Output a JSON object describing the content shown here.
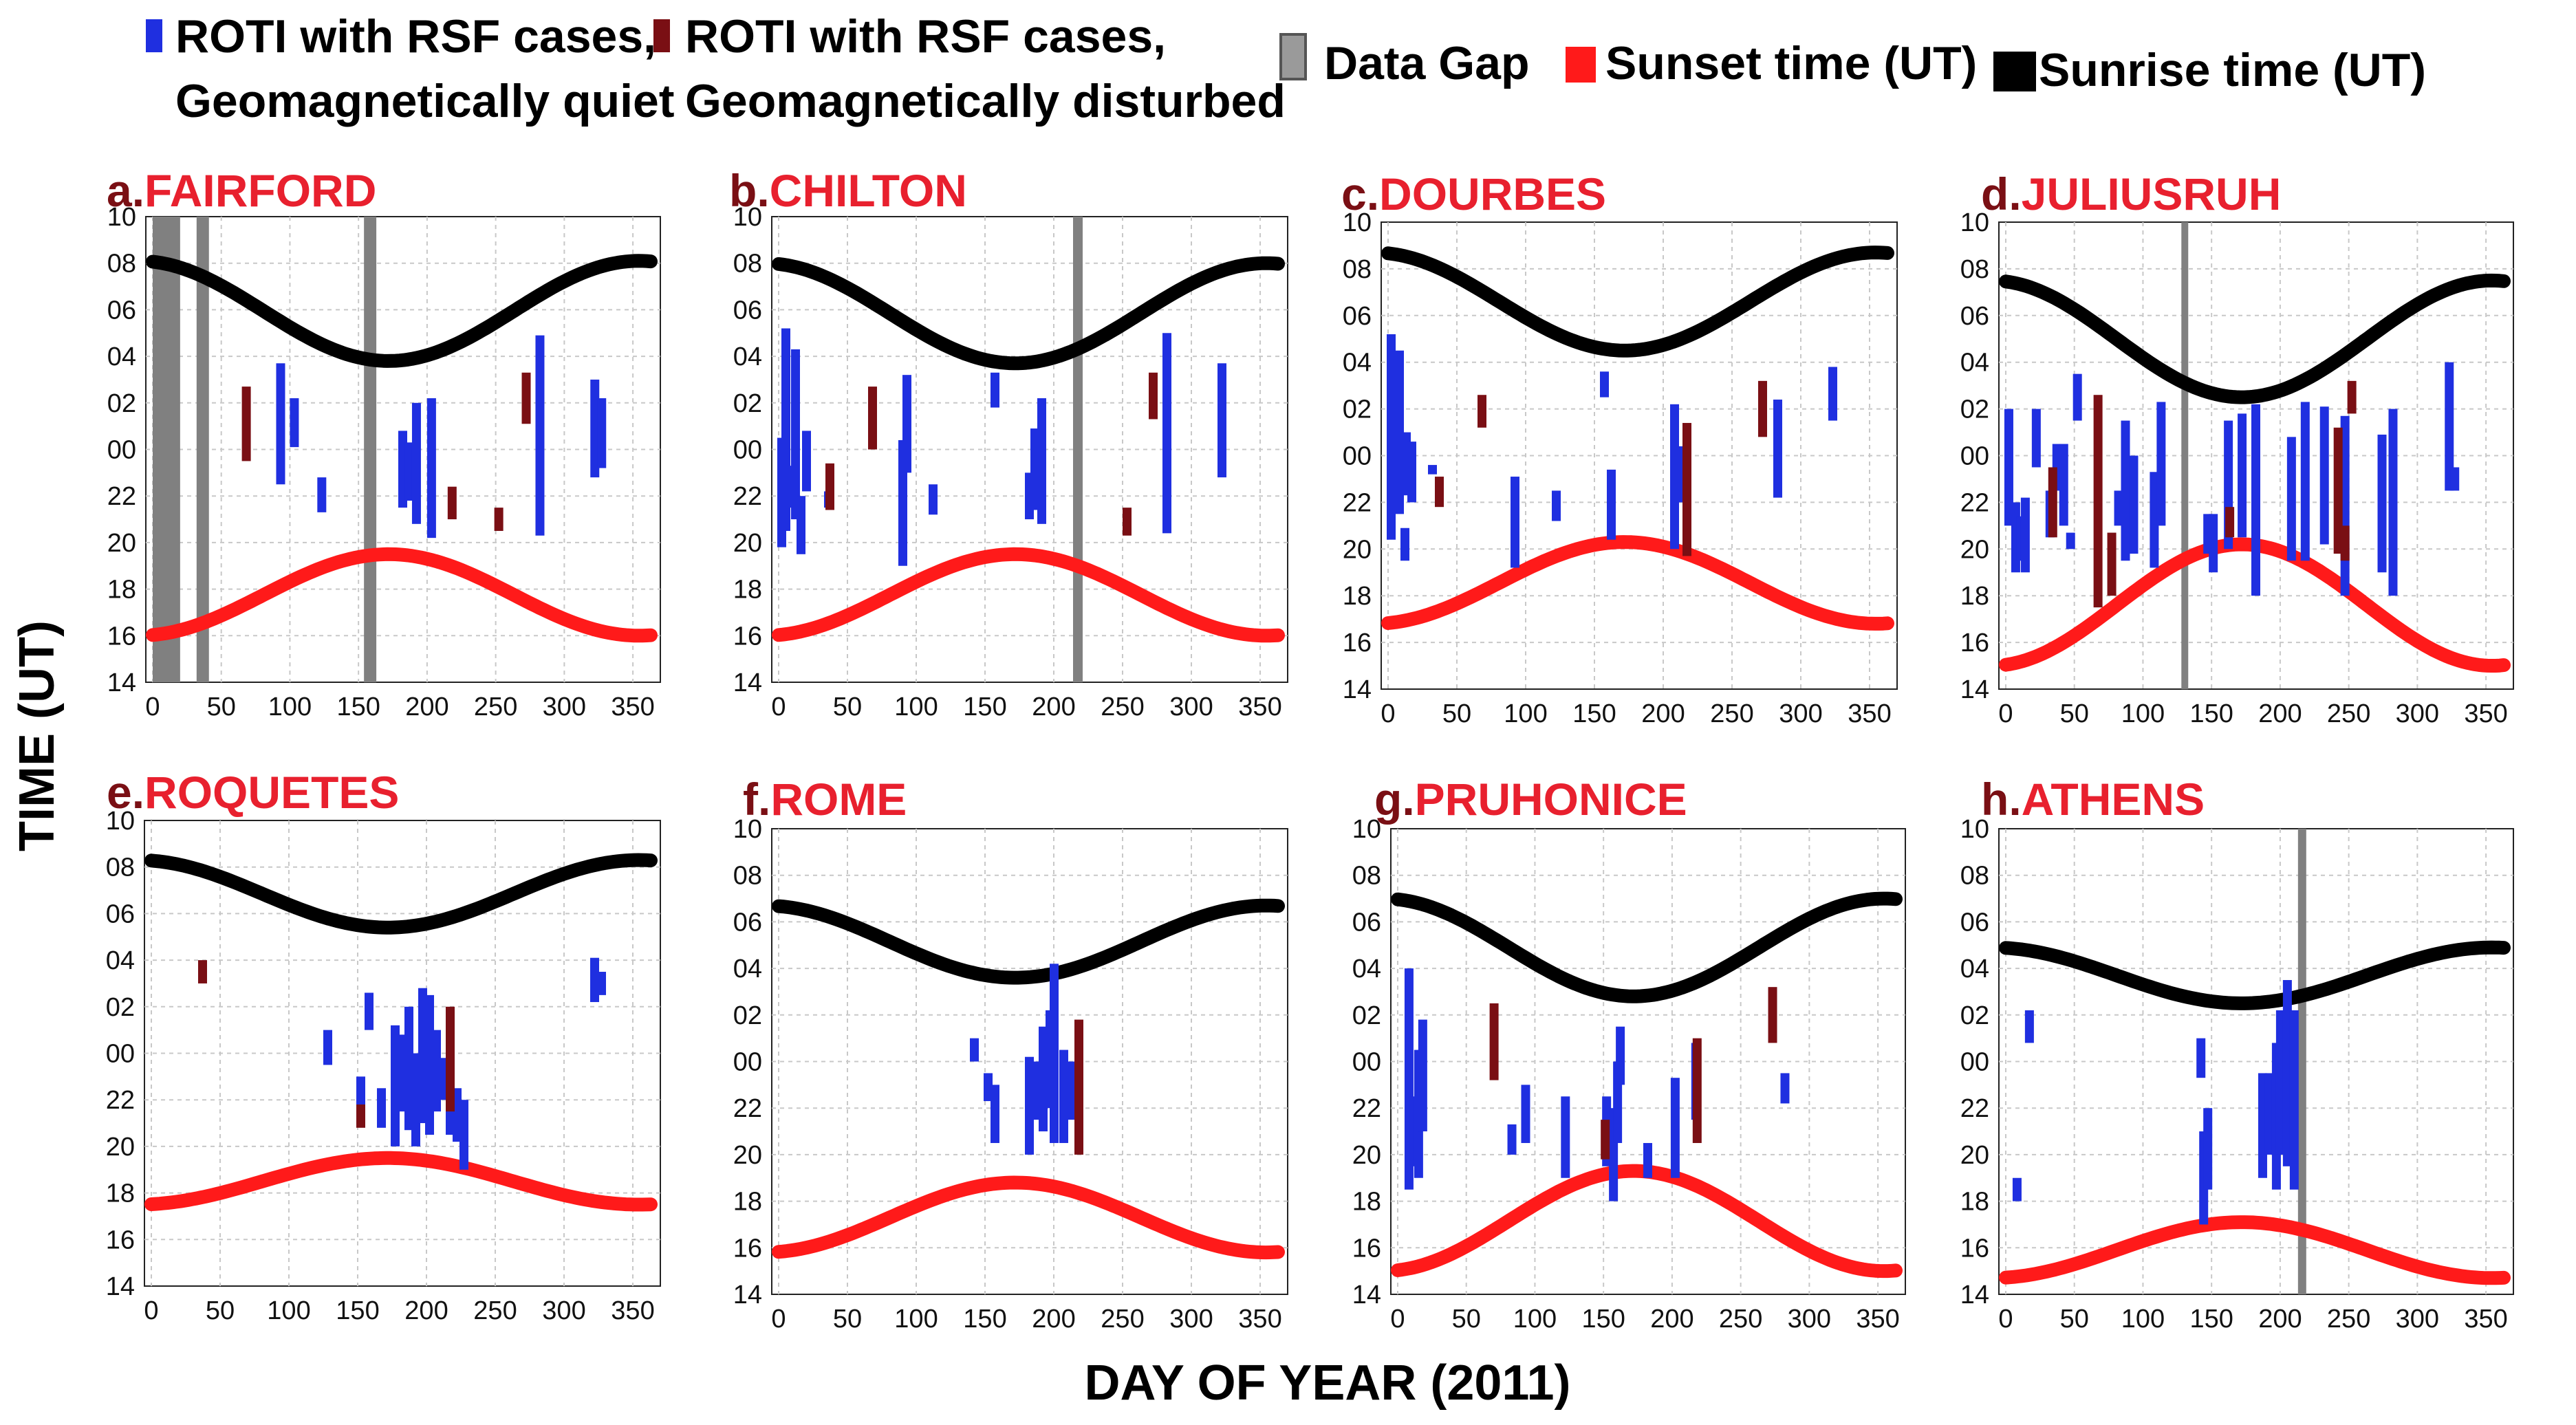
{
  "legend": {
    "quiet_label_line1": "ROTI with RSF cases,",
    "quiet_label_line2": "Geomagnetically quiet",
    "disturbed_label_line1": "ROTI with RSF cases,",
    "disturbed_label_line2": "Geomagnetically disturbed",
    "data_gap_label": "Data Gap",
    "sunset_label": "Sunset time (UT)",
    "sunrise_label": "Sunrise time (UT)"
  },
  "colors": {
    "quiet": "#1f2fe0",
    "disturbed": "#7a0f14",
    "data_gap": "#808080",
    "sunset": "#ff1a1a",
    "sunrise": "#000000",
    "title_letter": "#7a0f14",
    "title_name": "#e8202e",
    "grid": "#c8c8c8"
  },
  "axes": {
    "xlabel": "DAY OF YEAR (2011)",
    "ylabel": "TIME (UT)"
  },
  "chart_data": [
    {
      "type": "bar",
      "letter": "a.",
      "title": "FAIRFORD",
      "xlim": [
        -5,
        370
      ],
      "x_ticks": [
        "0",
        "50",
        "100",
        "150",
        "200",
        "250",
        "300",
        "350"
      ],
      "y_ticks": [
        "14",
        "16",
        "18",
        "20",
        "22",
        "00",
        "02",
        "04",
        "06",
        "08",
        "10"
      ],
      "sunrise": {
        "max": 8.1,
        "min": 3.8
      },
      "sunset": {
        "min": 16.0,
        "max": 19.5
      },
      "gaps": [
        [
          0,
          20
        ],
        [
          32,
          41
        ],
        [
          154,
          163
        ]
      ],
      "quiet_bars": [
        [
          93,
          -1.5,
          3.7
        ],
        [
          103,
          0.1,
          2.2
        ],
        [
          123,
          -2.7,
          -1.2
        ],
        [
          182,
          -2.5,
          0.8
        ],
        [
          187,
          -2.2,
          0.3
        ],
        [
          192,
          -3.2,
          2.0
        ],
        [
          203,
          -3.8,
          2.2
        ],
        [
          282,
          -3.7,
          4.9
        ],
        [
          322,
          -1.2,
          3.0
        ],
        [
          327,
          -0.8,
          2.2
        ]
      ],
      "disturbed_bars": [
        [
          68,
          -0.5,
          2.7
        ],
        [
          218,
          -3.0,
          -1.6
        ],
        [
          252,
          -3.5,
          -2.5
        ],
        [
          272,
          1.1,
          3.3
        ]
      ]
    },
    {
      "type": "bar",
      "letter": "b.",
      "title": "CHILTON",
      "xlim": [
        -5,
        370
      ],
      "x_ticks": [
        "0",
        "50",
        "100",
        "150",
        "200",
        "250",
        "300",
        "350"
      ],
      "y_ticks": [
        "14",
        "16",
        "18",
        "20",
        "22",
        "00",
        "02",
        "04",
        "06",
        "08",
        "10"
      ],
      "sunrise": {
        "max": 8.0,
        "min": 3.7
      },
      "sunset": {
        "min": 16.0,
        "max": 19.5
      },
      "gaps": [
        [
          214,
          221
        ]
      ],
      "quiet_bars": [
        [
          2,
          -4.2,
          0.5
        ],
        [
          5,
          -3.5,
          5.2
        ],
        [
          8,
          -2.5,
          -0.7
        ],
        [
          12,
          -3.0,
          4.3
        ],
        [
          16,
          -4.5,
          -2.0
        ],
        [
          20,
          -1.8,
          0.8
        ],
        [
          36,
          -2.5,
          -1.8
        ],
        [
          90,
          -5.0,
          0.4
        ],
        [
          93,
          -1.0,
          3.2
        ],
        [
          112,
          -2.8,
          -1.5
        ],
        [
          157,
          1.8,
          3.3
        ],
        [
          182,
          -3.0,
          -1.0
        ],
        [
          186,
          -2.6,
          0.9
        ],
        [
          191,
          -3.2,
          2.2
        ],
        [
          282,
          -3.6,
          5.0
        ],
        [
          322,
          -1.2,
          3.7
        ]
      ],
      "disturbed_bars": [
        [
          37,
          -2.6,
          -0.6
        ],
        [
          68,
          0.0,
          2.7
        ],
        [
          253,
          -3.7,
          -2.5
        ],
        [
          272,
          1.3,
          3.3
        ]
      ]
    },
    {
      "type": "bar",
      "letter": "c.",
      "title": "DOURBES",
      "xlim": [
        -5,
        370
      ],
      "x_ticks": [
        "0",
        "50",
        "100",
        "150",
        "200",
        "250",
        "300",
        "350"
      ],
      "y_ticks": [
        "14",
        "16",
        "18",
        "20",
        "22",
        "00",
        "02",
        "04",
        "06",
        "08",
        "10"
      ],
      "sunrise": {
        "max": 8.7,
        "min": 4.5
      },
      "sunset": {
        "min": 16.8,
        "max": 20.3
      },
      "gaps": [],
      "quiet_bars": [
        [
          2,
          -3.6,
          5.2
        ],
        [
          8,
          -2.5,
          4.5
        ],
        [
          12,
          -4.5,
          -3.1
        ],
        [
          13,
          -1.7,
          1.0
        ],
        [
          17,
          -2.0,
          0.6
        ],
        [
          32,
          -0.8,
          -0.4
        ],
        [
          92,
          -4.8,
          -0.9
        ],
        [
          122,
          -2.8,
          -1.5
        ],
        [
          157,
          2.5,
          3.6
        ],
        [
          162,
          -3.6,
          -0.6
        ],
        [
          208,
          -4.0,
          2.2
        ],
        [
          212,
          -2.0,
          0.4
        ],
        [
          283,
          -1.8,
          2.4
        ],
        [
          323,
          1.5,
          3.8
        ]
      ],
      "disturbed_bars": [
        [
          37,
          -2.2,
          -0.9
        ],
        [
          68,
          1.2,
          2.6
        ],
        [
          217,
          -4.3,
          1.4
        ],
        [
          272,
          0.8,
          3.2
        ]
      ]
    },
    {
      "type": "bar",
      "letter": "d.",
      "title": "JULIUSRUH",
      "xlim": [
        -5,
        370
      ],
      "x_ticks": [
        "0",
        "50",
        "100",
        "150",
        "200",
        "250",
        "300",
        "350"
      ],
      "y_ticks": [
        "14",
        "16",
        "18",
        "20",
        "22",
        "00",
        "02",
        "04",
        "06",
        "08",
        "10"
      ],
      "sunrise": {
        "max": 7.5,
        "min": 2.5
      },
      "sunset": {
        "min": 15.0,
        "max": 20.2
      },
      "gaps": [
        [
          128,
          133
        ]
      ],
      "quiet_bars": [
        [
          2,
          -3.0,
          2.0
        ],
        [
          7,
          -5.0,
          -2.0
        ],
        [
          11,
          -4.5,
          -2.6
        ],
        [
          14,
          -5.0,
          -1.8
        ],
        [
          22,
          -0.5,
          2.0
        ],
        [
          32,
          -3.5,
          -1.5
        ],
        [
          37,
          -1.5,
          0.5
        ],
        [
          42,
          -3.0,
          0.5
        ],
        [
          47,
          -4.0,
          -3.3
        ],
        [
          52,
          1.5,
          3.5
        ],
        [
          82,
          -3.0,
          -1.5
        ],
        [
          87,
          -4.5,
          1.5
        ],
        [
          93,
          -4.2,
          0.0
        ],
        [
          108,
          -4.8,
          -0.7
        ],
        [
          113,
          -3.0,
          2.3
        ],
        [
          147,
          -4.2,
          -2.5
        ],
        [
          151,
          -5.0,
          -2.5
        ],
        [
          162,
          -4.0,
          1.5
        ],
        [
          172,
          -3.5,
          1.8
        ],
        [
          182,
          -6.0,
          2.2
        ],
        [
          208,
          -4.5,
          0.8
        ],
        [
          218,
          -4.5,
          2.3
        ],
        [
          232,
          -3.8,
          2.1
        ],
        [
          247,
          -6.0,
          1.7
        ],
        [
          274,
          -5.0,
          0.9
        ],
        [
          282,
          -6.0,
          2.0
        ],
        [
          323,
          -1.5,
          4.0
        ],
        [
          327,
          -1.5,
          -0.5
        ]
      ],
      "disturbed_bars": [
        [
          34,
          -3.5,
          -0.5
        ],
        [
          67,
          -6.5,
          2.6
        ],
        [
          77,
          -6.0,
          -3.3
        ],
        [
          163,
          -3.5,
          -2.2
        ],
        [
          242,
          -4.2,
          1.2
        ],
        [
          247,
          -4.5,
          -3.0
        ],
        [
          252,
          1.8,
          3.2
        ]
      ]
    },
    {
      "type": "bar",
      "letter": "e.",
      "title": "ROQUETES",
      "xlim": [
        -5,
        370
      ],
      "x_ticks": [
        "0",
        "50",
        "100",
        "150",
        "200",
        "250",
        "300",
        "350"
      ],
      "y_ticks": [
        "14",
        "16",
        "18",
        "20",
        "22",
        "00",
        "02",
        "04",
        "06",
        "08",
        "10"
      ],
      "sunrise": {
        "max": 8.3,
        "min": 5.4
      },
      "sunset": {
        "min": 17.5,
        "max": 19.5
      },
      "gaps": [],
      "quiet_bars": [
        [
          128,
          -0.5,
          1.0
        ],
        [
          152,
          -2.5,
          -1.0
        ],
        [
          158,
          1.0,
          2.6
        ],
        [
          167,
          -3.2,
          -1.5
        ],
        [
          177,
          -4.0,
          1.2
        ],
        [
          182,
          -2.5,
          0.8
        ],
        [
          187,
          -3.3,
          2.0
        ],
        [
          192,
          -4.0,
          0.0
        ],
        [
          197,
          -3.0,
          2.8
        ],
        [
          202,
          -3.5,
          2.5
        ],
        [
          207,
          -2.5,
          1.0
        ],
        [
          212,
          -2.0,
          -0.2
        ],
        [
          217,
          -3.5,
          1.2
        ],
        [
          222,
          -3.8,
          -1.5
        ],
        [
          227,
          -5.0,
          -2.0
        ],
        [
          322,
          2.2,
          4.1
        ],
        [
          327,
          2.5,
          3.5
        ]
      ],
      "disturbed_bars": [
        [
          37,
          3.0,
          4.0
        ],
        [
          152,
          -3.2,
          -2.2
        ],
        [
          217,
          -2.5,
          2.0
        ]
      ]
    },
    {
      "type": "bar",
      "letter": "f.",
      "title": "ROME",
      "xlim": [
        -5,
        370
      ],
      "x_ticks": [
        "0",
        "50",
        "100",
        "150",
        "200",
        "250",
        "300",
        "350"
      ],
      "y_ticks": [
        "14",
        "16",
        "18",
        "20",
        "22",
        "00",
        "02",
        "04",
        "06",
        "08",
        "10"
      ],
      "sunrise": {
        "max": 6.7,
        "min": 3.6
      },
      "sunset": {
        "min": 15.8,
        "max": 18.8
      },
      "gaps": [],
      "quiet_bars": [
        [
          142,
          0.0,
          1.0
        ],
        [
          152,
          -1.7,
          -0.5
        ],
        [
          157,
          -3.5,
          -1.0
        ],
        [
          182,
          -4.0,
          0.2
        ],
        [
          187,
          -2.5,
          0.0
        ],
        [
          192,
          -3.0,
          1.5
        ],
        [
          197,
          -2.0,
          2.2
        ],
        [
          200,
          -3.5,
          4.2
        ],
        [
          207,
          -3.5,
          0.5
        ],
        [
          212,
          -2.5,
          0.0
        ]
      ],
      "disturbed_bars": [
        [
          218,
          -4.0,
          1.8
        ]
      ]
    },
    {
      "type": "bar",
      "letter": "g.",
      "title": "PRUHONICE",
      "xlim": [
        -5,
        370
      ],
      "x_ticks": [
        "0",
        "50",
        "100",
        "150",
        "200",
        "250",
        "300",
        "350"
      ],
      "y_ticks": [
        "14",
        "16",
        "18",
        "20",
        "22",
        "00",
        "02",
        "04",
        "06",
        "08",
        "10"
      ],
      "sunrise": {
        "max": 7.0,
        "min": 2.8
      },
      "sunset": {
        "min": 15.0,
        "max": 19.3
      },
      "gaps": [],
      "quiet_bars": [
        [
          8,
          -5.5,
          4.0
        ],
        [
          12,
          -4.5,
          -1.5
        ],
        [
          15,
          -5.0,
          0.5
        ],
        [
          18,
          -3.0,
          1.8
        ],
        [
          83,
          -4.0,
          -2.7
        ],
        [
          93,
          -3.5,
          -1.0
        ],
        [
          122,
          -5.0,
          -1.5
        ],
        [
          152,
          -4.5,
          -1.5
        ],
        [
          157,
          -6.0,
          -2.0
        ],
        [
          160,
          -3.5,
          0.0
        ],
        [
          162,
          -1.0,
          1.5
        ],
        [
          182,
          -5.0,
          -3.5
        ],
        [
          202,
          -5.0,
          -0.7
        ],
        [
          217,
          -2.5,
          0.8
        ],
        [
          282,
          -1.8,
          -0.5
        ]
      ],
      "disturbed_bars": [
        [
          70,
          -0.8,
          2.5
        ],
        [
          151,
          -4.2,
          -2.5
        ],
        [
          218,
          -3.5,
          1.0
        ],
        [
          273,
          0.8,
          3.2
        ]
      ]
    },
    {
      "type": "bar",
      "letter": "h.",
      "title": "ATHENS",
      "xlim": [
        -5,
        370
      ],
      "x_ticks": [
        "0",
        "50",
        "100",
        "150",
        "200",
        "250",
        "300",
        "350"
      ],
      "y_ticks": [
        "14",
        "16",
        "18",
        "20",
        "22",
        "00",
        "02",
        "04",
        "06",
        "08",
        "10"
      ],
      "sunrise": {
        "max": 4.9,
        "min": 2.5
      },
      "sunset": {
        "min": 14.7,
        "max": 17.1
      },
      "gaps": [
        [
          213,
          219
        ]
      ],
      "quiet_bars": [
        [
          8,
          -6.0,
          -5.0
        ],
        [
          17,
          0.8,
          2.2
        ],
        [
          142,
          -0.7,
          1.0
        ],
        [
          144,
          -7.0,
          -3.0
        ],
        [
          147,
          -5.5,
          -2.0
        ],
        [
          187,
          -5.0,
          -0.5
        ],
        [
          192,
          -4.0,
          -0.5
        ],
        [
          197,
          -5.5,
          0.8
        ],
        [
          200,
          -4.0,
          2.2
        ],
        [
          205,
          -4.5,
          3.5
        ],
        [
          210,
          -5.5,
          2.2
        ]
      ],
      "disturbed_bars": []
    }
  ]
}
